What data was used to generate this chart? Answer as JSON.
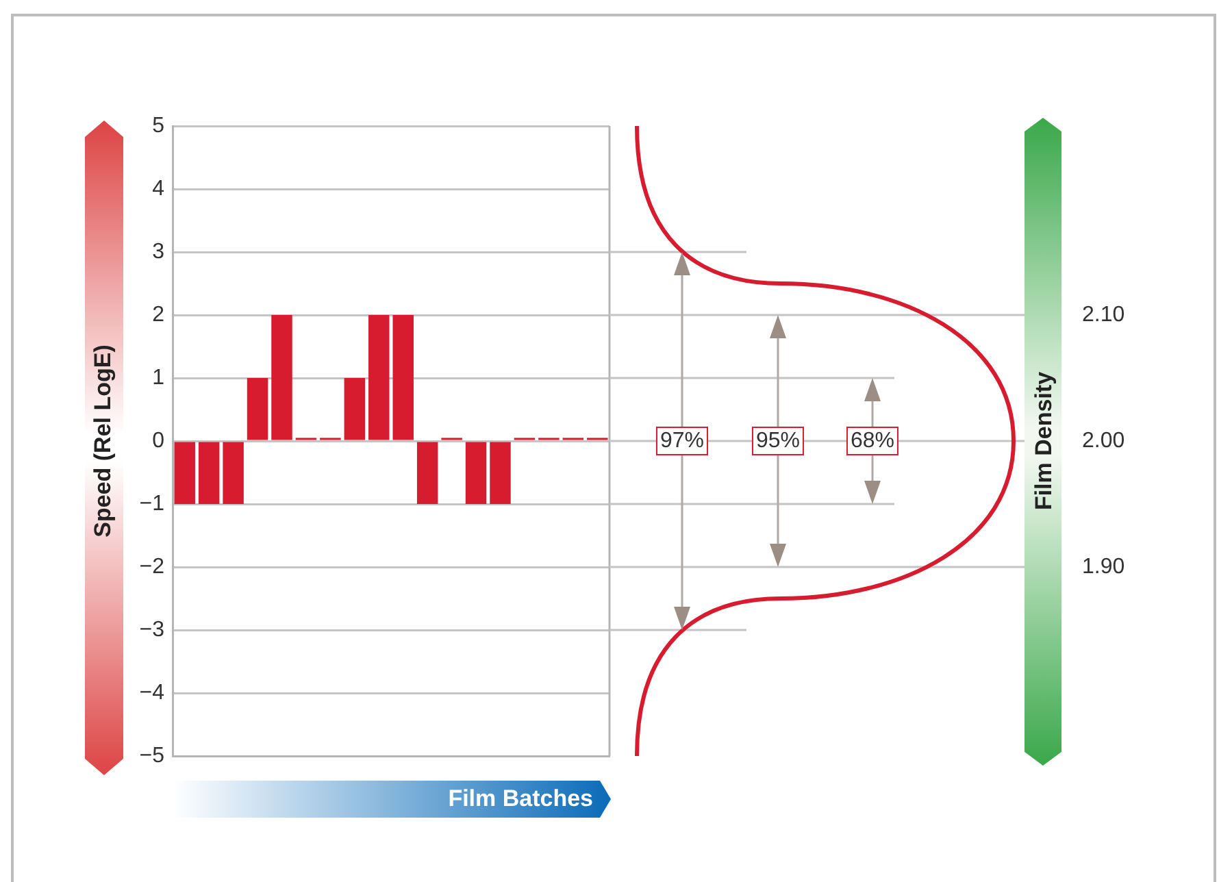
{
  "chart_data": {
    "type": "bar",
    "xlabel": "Film Batches",
    "ylabel": "Speed (Rel LogE)",
    "y2label": "Film Density",
    "categories": [
      null,
      null,
      null,
      null,
      null,
      null,
      null,
      null,
      null,
      null,
      null,
      null,
      null,
      null,
      null,
      null,
      null,
      null
    ],
    "values": [
      -1,
      -1,
      -1,
      1,
      2,
      0.05,
      0.05,
      1,
      2,
      2,
      -1,
      0.05,
      -1,
      -1,
      0.05,
      0.05,
      0.05,
      0.05
    ],
    "color": "#d71c30",
    "ylim": [
      -5,
      5
    ],
    "yticks": [
      {
        "value": -5,
        "label": "−5"
      },
      {
        "value": -4,
        "label": "−4"
      },
      {
        "value": -3,
        "label": "−3"
      },
      {
        "value": -2,
        "label": "−2"
      },
      {
        "value": -1,
        "label": "−1"
      },
      0,
      1,
      2,
      3,
      4,
      5
    ],
    "y2lim": [
      1.75,
      2.25
    ],
    "y2ticks": [
      {
        "value": 1.9,
        "label": "1.90"
      },
      {
        "value": 2.0,
        "label": "2.00"
      },
      {
        "value": 2.1,
        "label": "2.10"
      }
    ],
    "annotations": [
      "97%",
      "95%",
      "68%"
    ],
    "grid": "y",
    "legend": false,
    "tick_labels": "y"
  }
}
